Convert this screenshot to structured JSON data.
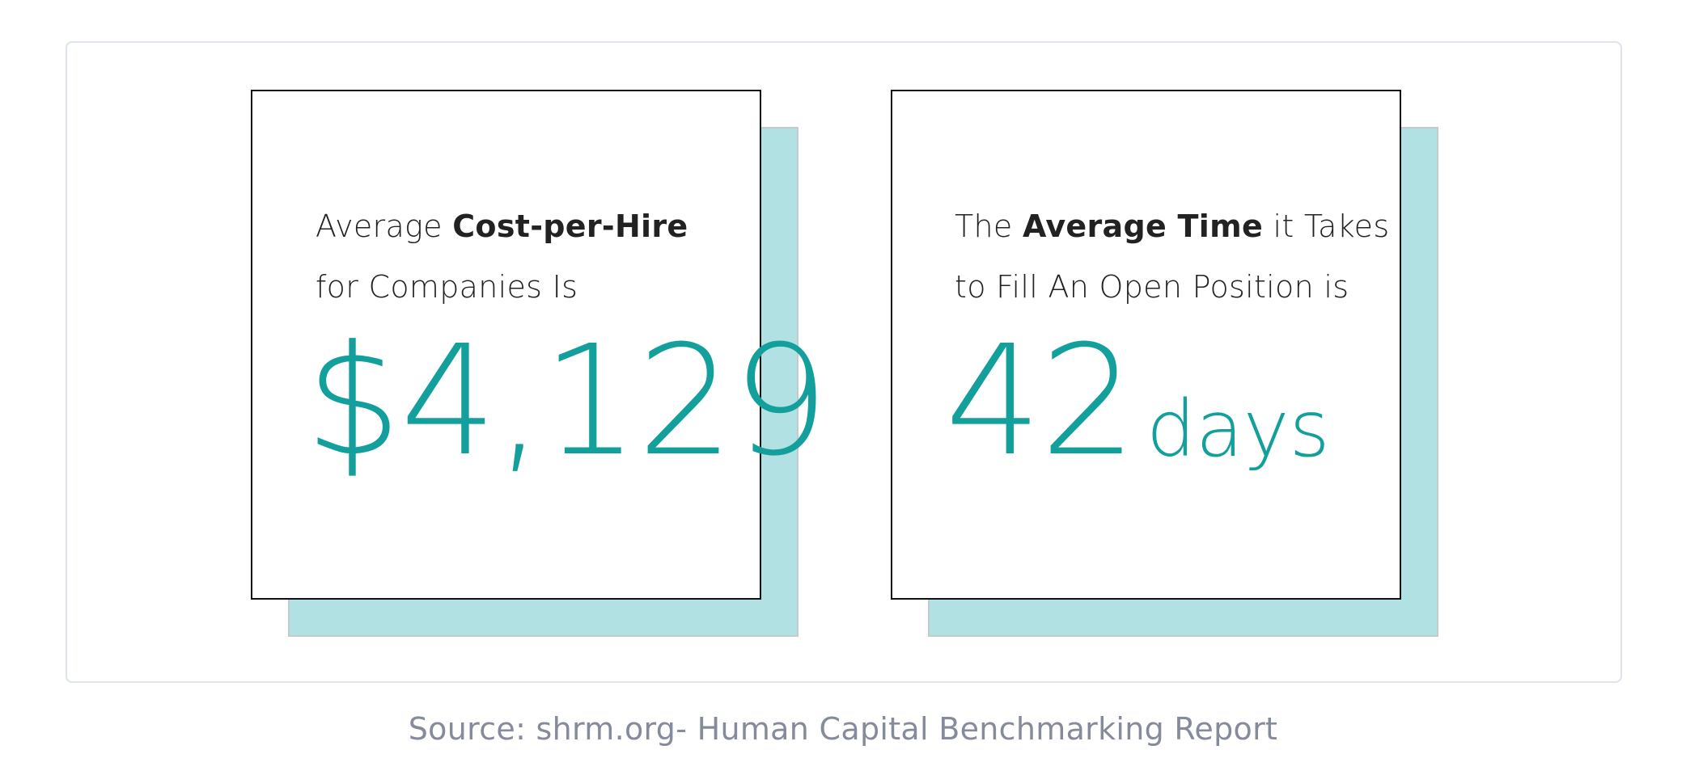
{
  "card1": {
    "line1_prefix": "Average ",
    "line1_bold": "Cost-per-Hire",
    "line2": "for Companies Is",
    "value": "$4,129"
  },
  "card2": {
    "line1_prefix": "The ",
    "line1_bold": "Average Time",
    "line1_suffix": " it Takes",
    "line2": "to Fill An Open Position is",
    "value": "42",
    "unit": "days"
  },
  "source": "Source: shrm.org- Human Capital Benchmarking Report",
  "colors": {
    "accent": "#13a09c",
    "shadow": "#b1e1e2",
    "text": "#222222",
    "source_text": "#858b9b"
  }
}
